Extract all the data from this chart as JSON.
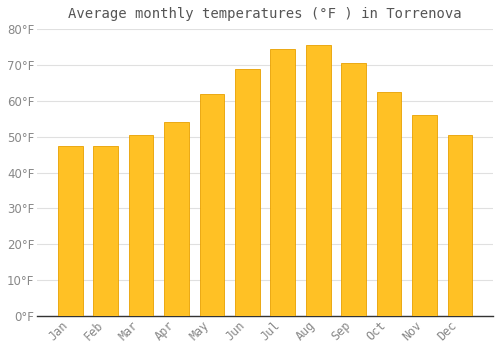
{
  "title": "Average monthly temperatures (°F ) in Torrenova",
  "months": [
    "Jan",
    "Feb",
    "Mar",
    "Apr",
    "May",
    "Jun",
    "Jul",
    "Aug",
    "Sep",
    "Oct",
    "Nov",
    "Dec"
  ],
  "values": [
    47.5,
    47.5,
    50.5,
    54.0,
    62.0,
    69.0,
    74.5,
    75.5,
    70.5,
    62.5,
    56.0,
    50.5
  ],
  "bar_color": "#FFC125",
  "bar_edge_color": "#E8A000",
  "background_color": "#FFFFFF",
  "grid_color": "#E0E0E0",
  "text_color": "#888888",
  "title_color": "#555555",
  "spine_color": "#333333",
  "ylim": [
    0,
    80
  ],
  "ytick_step": 10,
  "title_fontsize": 10,
  "tick_fontsize": 8.5
}
